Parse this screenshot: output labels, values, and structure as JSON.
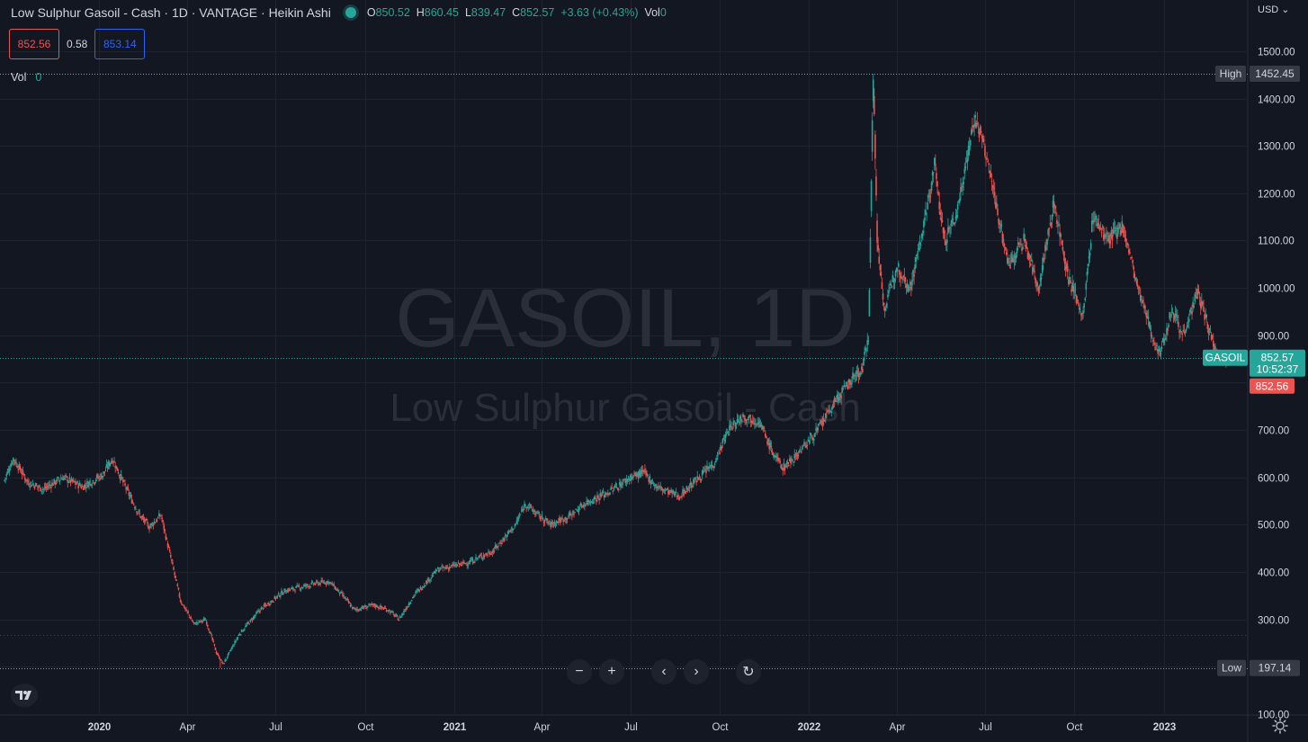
{
  "header": {
    "title": "Low Sulphur Gasoil - Cash · 1D · VANTAGE · Heikin Ashi",
    "o_label": "O",
    "o_value": "850.52",
    "h_label": "H",
    "h_value": "860.45",
    "l_label": "L",
    "l_value": "839.47",
    "c_label": "C",
    "c_value": "852.57",
    "change": "+3.63 (+0.43%)",
    "vol_label": "Vol",
    "vol_value": "0"
  },
  "quote": {
    "sell": "852.56",
    "spread": "0.58",
    "buy": "853.14"
  },
  "volume_line": {
    "label": "Vol",
    "value": "0"
  },
  "currency": "USD",
  "watermark": {
    "symbol": "GASOIL, 1D",
    "name": "Low Sulphur Gasoil - Cash"
  },
  "price_markers": {
    "high_label": "High",
    "high_value": "1452.45",
    "low_label": "Low",
    "low_value": "197.14",
    "symbol_tag": "GASOIL",
    "last_value": "852.57",
    "countdown": "10:52:37",
    "bid_value": "852.56"
  },
  "colors": {
    "up": "#26a69a",
    "down": "#ef5350",
    "background": "#131722",
    "grid": "#1e222d",
    "blue": "#2962ff"
  },
  "chart_data": {
    "type": "candlestick",
    "style": "Heikin Ashi",
    "interval": "1D",
    "title": "Low Sulphur Gasoil - Cash · 1D · VANTAGE · Heikin Ashi",
    "x_ticks": [
      {
        "date": "2020-01-01",
        "label": "2020"
      },
      {
        "date": "2020-04-01",
        "label": "Apr"
      },
      {
        "date": "2020-07-01",
        "label": "Jul"
      },
      {
        "date": "2020-10-01",
        "label": "Oct"
      },
      {
        "date": "2021-01-01",
        "label": "2021"
      },
      {
        "date": "2021-04-01",
        "label": "Apr"
      },
      {
        "date": "2021-07-01",
        "label": "Jul"
      },
      {
        "date": "2021-10-01",
        "label": "Oct"
      },
      {
        "date": "2022-01-01",
        "label": "2022"
      },
      {
        "date": "2022-04-01",
        "label": "Apr"
      },
      {
        "date": "2022-07-01",
        "label": "Jul"
      },
      {
        "date": "2022-10-01",
        "label": "Oct"
      },
      {
        "date": "2023-01-01",
        "label": "2023"
      }
    ],
    "y_ticks": [
      "100.00",
      "200.00",
      "300.00",
      "400.00",
      "500.00",
      "600.00",
      "700.00",
      "800.00",
      "900.00",
      "1000.00",
      "1100.00",
      "1200.00",
      "1300.00",
      "1400.00",
      "1500.00"
    ],
    "y_tick_values": [
      100,
      200,
      300,
      400,
      500,
      600,
      700,
      800,
      900,
      1000,
      1100,
      1200,
      1300,
      1400,
      1500
    ],
    "x_range": [
      "2019-09-25",
      "2023-03-08"
    ],
    "y_range": [
      75,
      1555
    ],
    "grid": true,
    "high": 1452.45,
    "low": 197.14,
    "last": 852.57,
    "dotted_level": 267,
    "series": [
      {
        "name": "GASOIL",
        "price_path": [
          [
            "2019-09-25",
            590
          ],
          [
            "2019-10-05",
            640
          ],
          [
            "2019-10-20",
            590
          ],
          [
            "2019-11-05",
            575
          ],
          [
            "2019-11-25",
            600
          ],
          [
            "2019-12-15",
            580
          ],
          [
            "2020-01-05",
            605
          ],
          [
            "2020-01-15",
            640
          ],
          [
            "2020-01-28",
            580
          ],
          [
            "2020-02-12",
            520
          ],
          [
            "2020-02-22",
            495
          ],
          [
            "2020-03-05",
            520
          ],
          [
            "2020-03-15",
            430
          ],
          [
            "2020-03-25",
            340
          ],
          [
            "2020-04-08",
            290
          ],
          [
            "2020-04-20",
            300
          ],
          [
            "2020-05-01",
            230
          ],
          [
            "2020-05-08",
            205
          ],
          [
            "2020-05-25",
            270
          ],
          [
            "2020-06-15",
            320
          ],
          [
            "2020-07-10",
            360
          ],
          [
            "2020-08-10",
            375
          ],
          [
            "2020-08-25",
            380
          ],
          [
            "2020-09-10",
            345
          ],
          [
            "2020-09-20",
            320
          ],
          [
            "2020-10-10",
            330
          ],
          [
            "2020-10-25",
            320
          ],
          [
            "2020-11-05",
            300
          ],
          [
            "2020-11-20",
            350
          ],
          [
            "2020-12-15",
            405
          ],
          [
            "2021-01-15",
            420
          ],
          [
            "2021-02-10",
            445
          ],
          [
            "2021-03-05",
            500
          ],
          [
            "2021-03-15",
            545
          ],
          [
            "2021-03-28",
            520
          ],
          [
            "2021-04-10",
            500
          ],
          [
            "2021-05-01",
            520
          ],
          [
            "2021-05-15",
            545
          ],
          [
            "2021-06-10",
            570
          ],
          [
            "2021-07-01",
            600
          ],
          [
            "2021-07-15",
            610
          ],
          [
            "2021-07-28",
            580
          ],
          [
            "2021-08-20",
            560
          ],
          [
            "2021-09-05",
            590
          ],
          [
            "2021-09-25",
            630
          ],
          [
            "2021-10-10",
            700
          ],
          [
            "2021-10-25",
            730
          ],
          [
            "2021-11-10",
            720
          ],
          [
            "2021-11-25",
            650
          ],
          [
            "2021-12-05",
            620
          ],
          [
            "2021-12-20",
            650
          ],
          [
            "2022-01-10",
            700
          ],
          [
            "2022-01-28",
            760
          ],
          [
            "2022-02-15",
            810
          ],
          [
            "2022-02-25",
            830
          ],
          [
            "2022-03-03",
            900
          ],
          [
            "2022-03-08",
            1450
          ],
          [
            "2022-03-12",
            1100
          ],
          [
            "2022-03-20",
            950
          ],
          [
            "2022-04-01",
            1050
          ],
          [
            "2022-04-15",
            1000
          ],
          [
            "2022-05-01",
            1150
          ],
          [
            "2022-05-10",
            1260
          ],
          [
            "2022-05-20",
            1100
          ],
          [
            "2022-06-01",
            1150
          ],
          [
            "2022-06-10",
            1250
          ],
          [
            "2022-06-20",
            1360
          ],
          [
            "2022-06-30",
            1300
          ],
          [
            "2022-07-10",
            1200
          ],
          [
            "2022-07-25",
            1050
          ],
          [
            "2022-08-10",
            1100
          ],
          [
            "2022-08-25",
            1000
          ],
          [
            "2022-09-10",
            1180
          ],
          [
            "2022-09-25",
            1020
          ],
          [
            "2022-10-10",
            940
          ],
          [
            "2022-10-20",
            1150
          ],
          [
            "2022-11-05",
            1100
          ],
          [
            "2022-11-20",
            1130
          ],
          [
            "2022-12-05",
            1000
          ],
          [
            "2022-12-20",
            900
          ],
          [
            "2022-12-28",
            860
          ],
          [
            "2023-01-10",
            960
          ],
          [
            "2023-01-20",
            900
          ],
          [
            "2023-02-05",
            990
          ],
          [
            "2023-02-15",
            920
          ],
          [
            "2023-02-25",
            860
          ],
          [
            "2023-03-08",
            852.57
          ]
        ]
      }
    ]
  }
}
